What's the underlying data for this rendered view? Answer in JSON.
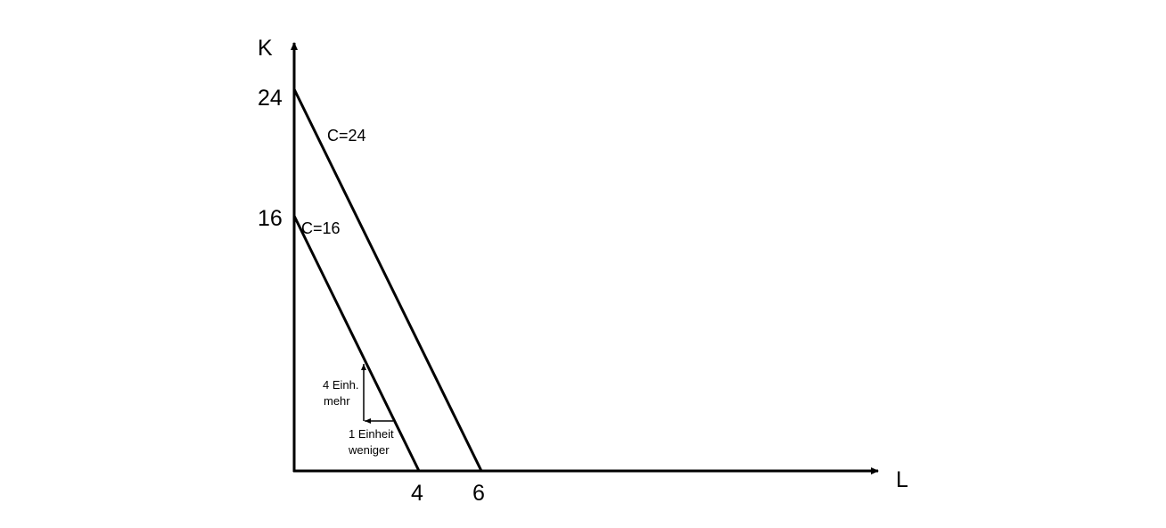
{
  "axes": {
    "y_label": "K",
    "x_label": "L",
    "y_ticks": [
      "24",
      "16"
    ],
    "x_ticks": [
      "4",
      "6"
    ]
  },
  "lines": {
    "c24_label": "C=24",
    "c16_label": "C=16"
  },
  "annotations": {
    "up_line1": "4 Einh.",
    "up_line2": "mehr",
    "left_line1": "1 Einheit",
    "left_line2": "weniger"
  },
  "colors": {
    "ink": "#000000",
    "background": "#ffffff"
  }
}
